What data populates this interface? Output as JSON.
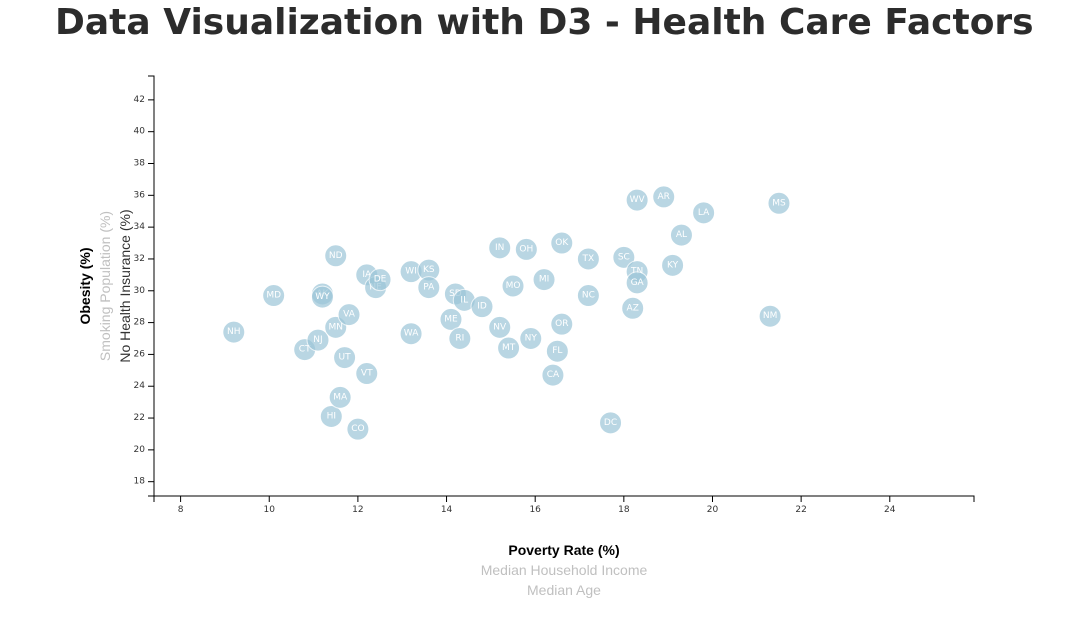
{
  "page": {
    "title": "Data Visualization with D3 - Health Care Factors"
  },
  "chart_data": {
    "type": "scatter",
    "title": "",
    "xlabel": "Poverty Rate (%)",
    "ylabel": "Obesity (%)",
    "x_axis_options": [
      {
        "label": "Poverty Rate (%)",
        "state": "active"
      },
      {
        "label": "Median Household Income",
        "state": "inactive"
      },
      {
        "label": "Median Age",
        "state": "inactive"
      }
    ],
    "y_axis_options": [
      {
        "label": "Obesity (%)",
        "state": "active"
      },
      {
        "label": "No Health Insurance (%)",
        "state": "mid"
      },
      {
        "label": "Smoking Population (%)",
        "state": "inactive"
      }
    ],
    "xlim": [
      7.4,
      25.9
    ],
    "ylim": [
      17.1,
      43.5
    ],
    "x_ticks": [
      8,
      10,
      12,
      14,
      16,
      18,
      20,
      22,
      24
    ],
    "y_ticks": [
      18,
      20,
      22,
      24,
      26,
      28,
      30,
      32,
      34,
      36,
      38,
      40,
      42
    ],
    "grid": false,
    "legend": "none",
    "point_color": "#9cc6d8",
    "points": [
      {
        "abbr": "NH",
        "x": 9.2,
        "y": 27.4
      },
      {
        "abbr": "MD",
        "x": 10.1,
        "y": 29.7
      },
      {
        "abbr": "CT",
        "x": 10.8,
        "y": 26.3
      },
      {
        "abbr": "NJ",
        "x": 11.1,
        "y": 26.9
      },
      {
        "abbr": "AK",
        "x": 11.2,
        "y": 29.8
      },
      {
        "abbr": "WY",
        "x": 11.2,
        "y": 29.6
      },
      {
        "abbr": "HI",
        "x": 11.4,
        "y": 22.1
      },
      {
        "abbr": "ND",
        "x": 11.5,
        "y": 32.2
      },
      {
        "abbr": "MN",
        "x": 11.5,
        "y": 27.7
      },
      {
        "abbr": "MA",
        "x": 11.6,
        "y": 23.3
      },
      {
        "abbr": "UT",
        "x": 11.7,
        "y": 25.8
      },
      {
        "abbr": "VA",
        "x": 11.8,
        "y": 28.5
      },
      {
        "abbr": "CO",
        "x": 12.0,
        "y": 21.3
      },
      {
        "abbr": "IA",
        "x": 12.2,
        "y": 31.0
      },
      {
        "abbr": "VT",
        "x": 12.2,
        "y": 24.8
      },
      {
        "abbr": "NE",
        "x": 12.4,
        "y": 30.2
      },
      {
        "abbr": "DE",
        "x": 12.5,
        "y": 30.7
      },
      {
        "abbr": "WI",
        "x": 13.2,
        "y": 31.2
      },
      {
        "abbr": "WA",
        "x": 13.2,
        "y": 27.3
      },
      {
        "abbr": "KS",
        "x": 13.6,
        "y": 31.3
      },
      {
        "abbr": "PA",
        "x": 13.6,
        "y": 30.2
      },
      {
        "abbr": "ME",
        "x": 14.1,
        "y": 28.2
      },
      {
        "abbr": "SD",
        "x": 14.2,
        "y": 29.8
      },
      {
        "abbr": "RI",
        "x": 14.3,
        "y": 27.0
      },
      {
        "abbr": "IL",
        "x": 14.4,
        "y": 29.4
      },
      {
        "abbr": "ID",
        "x": 14.8,
        "y": 29.0
      },
      {
        "abbr": "IN",
        "x": 15.2,
        "y": 32.7
      },
      {
        "abbr": "NV",
        "x": 15.2,
        "y": 27.7
      },
      {
        "abbr": "MT",
        "x": 15.4,
        "y": 26.4
      },
      {
        "abbr": "MO",
        "x": 15.5,
        "y": 30.3
      },
      {
        "abbr": "OH",
        "x": 15.8,
        "y": 32.6
      },
      {
        "abbr": "NY",
        "x": 15.9,
        "y": 27.0
      },
      {
        "abbr": "MI",
        "x": 16.2,
        "y": 30.7
      },
      {
        "abbr": "CA",
        "x": 16.4,
        "y": 24.7
      },
      {
        "abbr": "FL",
        "x": 16.5,
        "y": 26.2
      },
      {
        "abbr": "OK",
        "x": 16.6,
        "y": 33.0
      },
      {
        "abbr": "OR",
        "x": 16.6,
        "y": 27.9
      },
      {
        "abbr": "TX",
        "x": 17.2,
        "y": 32.0
      },
      {
        "abbr": "NC",
        "x": 17.2,
        "y": 29.7
      },
      {
        "abbr": "DC",
        "x": 17.7,
        "y": 21.7
      },
      {
        "abbr": "SC",
        "x": 18.0,
        "y": 32.1
      },
      {
        "abbr": "AZ",
        "x": 18.2,
        "y": 28.9
      },
      {
        "abbr": "TN",
        "x": 18.3,
        "y": 31.2
      },
      {
        "abbr": "GA",
        "x": 18.3,
        "y": 30.5
      },
      {
        "abbr": "WV",
        "x": 18.3,
        "y": 35.7
      },
      {
        "abbr": "AR",
        "x": 18.9,
        "y": 35.9
      },
      {
        "abbr": "KY",
        "x": 19.1,
        "y": 31.6
      },
      {
        "abbr": "AL",
        "x": 19.3,
        "y": 33.5
      },
      {
        "abbr": "LA",
        "x": 19.8,
        "y": 34.9
      },
      {
        "abbr": "NM",
        "x": 21.3,
        "y": 28.4
      },
      {
        "abbr": "MS",
        "x": 21.5,
        "y": 35.5
      }
    ]
  }
}
